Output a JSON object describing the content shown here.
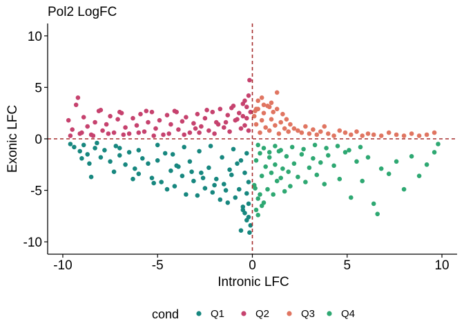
{
  "chart_data": {
    "type": "scatter",
    "title": "Pol2 LogFC",
    "xlabel": "Intronic LFC",
    "ylabel": "Exonic LFC",
    "xlim": [
      -10.8,
      10.8
    ],
    "ylim": [
      -11.2,
      11.2
    ],
    "xticks": [
      -10,
      -5,
      0,
      5,
      10
    ],
    "yticks": [
      -10,
      -5,
      0,
      5,
      10
    ],
    "reference_lines": {
      "x": 0,
      "y": 0,
      "style": "dashed",
      "color": "#A52A2A"
    },
    "legend": {
      "title": "cond",
      "position": "bottom"
    },
    "series": [
      {
        "name": "Q1",
        "color": "#17877F",
        "quadrant": "x<0, y<0",
        "x": [
          -9.6,
          -9.4,
          -9.1,
          -8.9,
          -8.7,
          -8.5,
          -8.3,
          -8.0,
          -7.8,
          -7.5,
          -7.2,
          -7.0,
          -6.7,
          -6.5,
          -6.2,
          -6.0,
          -5.8,
          -5.5,
          -5.3,
          -5.0,
          -4.8,
          -4.6,
          -4.3,
          -4.1,
          -3.9,
          -3.7,
          -3.5,
          -3.3,
          -3.1,
          -2.9,
          -2.7,
          -2.5,
          -2.3,
          -2.1,
          -1.9,
          -1.7,
          -1.5,
          -1.3,
          -1.1,
          -0.9,
          -0.7,
          -0.5,
          -0.3,
          -0.2,
          -8.2,
          -7.0,
          -6.0,
          -5.0,
          -4.2,
          -3.6,
          -2.8,
          -2.2,
          -1.6,
          -1.0,
          -0.6,
          -0.3,
          -1.2,
          -0.8,
          -0.4,
          -0.2,
          -0.5,
          -1.4,
          -2.0,
          -2.6,
          -3.2,
          -4.0,
          -4.5,
          -5.2,
          -6.3,
          -7.3,
          -8.6,
          -9.0,
          -0.1,
          -0.3,
          -0.6,
          -0.2,
          -0.4,
          -0.15
        ],
        "y": [
          -0.5,
          -0.8,
          -1.2,
          -0.6,
          -1.5,
          -3.7,
          -0.9,
          -1.8,
          -1.1,
          -2.2,
          -0.7,
          -1.6,
          -2.5,
          -1.3,
          -2.9,
          -3.4,
          -1.9,
          -2.4,
          -3.8,
          -2.1,
          -4.2,
          -1.4,
          -3.1,
          -4.6,
          -2.7,
          -3.6,
          -5.4,
          -2.2,
          -4.1,
          -5.5,
          -3.3,
          -4.8,
          -2.8,
          -5.2,
          -3.9,
          -5.9,
          -4.4,
          -6.2,
          -3.5,
          -5.7,
          -4.9,
          -6.6,
          -5.3,
          -7.6,
          -0.4,
          -0.9,
          -1.1,
          -0.6,
          -1.5,
          -0.8,
          -1.2,
          -0.7,
          -1.8,
          -1.0,
          -2.1,
          -1.4,
          -3.0,
          -2.4,
          -3.3,
          -4.2,
          -6.9,
          -5.0,
          -4.5,
          -3.8,
          -3.2,
          -2.6,
          -4.9,
          -4.3,
          -3.9,
          -3.2,
          -2.4,
          -1.9,
          -8.4,
          -7.9,
          -8.9,
          -6.3,
          -7.2,
          -9.1
        ]
      },
      {
        "name": "Q2",
        "color": "#C6426E",
        "quadrant": "x<0, y>0",
        "x": [
          -9.7,
          -9.5,
          -9.3,
          -9.1,
          -8.9,
          -8.7,
          -8.5,
          -8.3,
          -8.1,
          -7.9,
          -7.7,
          -7.5,
          -7.3,
          -7.1,
          -6.9,
          -6.7,
          -6.5,
          -6.3,
          -6.1,
          -5.9,
          -5.7,
          -5.5,
          -5.3,
          -5.1,
          -4.9,
          -4.7,
          -4.5,
          -4.3,
          -4.1,
          -3.9,
          -3.7,
          -3.5,
          -3.3,
          -3.1,
          -2.9,
          -2.7,
          -2.5,
          -2.3,
          -2.1,
          -1.9,
          -1.7,
          -1.5,
          -1.3,
          -1.1,
          -0.9,
          -0.7,
          -0.5,
          -0.3,
          -0.2,
          -9.6,
          -9.0,
          -8.4,
          -7.6,
          -6.8,
          -6.0,
          -5.2,
          -4.4,
          -3.6,
          -2.8,
          -2.0,
          -1.2,
          -0.6,
          -0.4,
          -0.2,
          -0.8,
          -1.4,
          -0.3,
          -0.1,
          -0.5,
          -9.2,
          -8.0,
          -7.0,
          -5.6,
          -4.0,
          -2.4,
          -1.0,
          -0.4,
          -0.15,
          -3.0,
          -1.8
        ],
        "y": [
          1.8,
          0.9,
          3.3,
          0.5,
          2.1,
          1.2,
          0.4,
          1.6,
          2.7,
          0.8,
          1.4,
          2.2,
          0.6,
          1.9,
          2.5,
          1.1,
          0.5,
          2.0,
          1.3,
          2.4,
          0.7,
          1.6,
          2.6,
          1.0,
          1.8,
          0.4,
          2.3,
          1.4,
          2.7,
          0.9,
          1.7,
          2.1,
          0.6,
          1.5,
          2.4,
          1.2,
          2.0,
          0.8,
          2.6,
          1.6,
          2.9,
          1.1,
          2.3,
          3.0,
          1.8,
          2.5,
          3.4,
          2.0,
          4.2,
          0.3,
          0.6,
          0.3,
          0.5,
          0.4,
          0.6,
          0.3,
          0.5,
          0.4,
          0.6,
          0.5,
          0.7,
          1.0,
          1.3,
          0.8,
          1.9,
          1.6,
          3.1,
          2.6,
          2.2,
          4.0,
          2.8,
          2.6,
          2.7,
          2.6,
          2.8,
          3.2,
          3.7,
          5.7,
          1.0,
          1.4
        ]
      },
      {
        "name": "Q3",
        "color": "#E07561",
        "quadrant": "x>0, y>0",
        "x": [
          0.1,
          0.2,
          0.3,
          0.4,
          0.5,
          0.6,
          0.7,
          0.8,
          0.9,
          1.0,
          1.1,
          1.2,
          1.3,
          1.4,
          1.5,
          1.6,
          1.7,
          1.8,
          1.9,
          2.0,
          2.2,
          2.4,
          2.6,
          2.8,
          3.0,
          3.2,
          3.4,
          3.6,
          3.8,
          4.0,
          4.3,
          4.6,
          4.9,
          5.2,
          5.5,
          5.8,
          6.1,
          6.4,
          6.8,
          7.2,
          7.6,
          8.0,
          8.4,
          8.8,
          9.2,
          9.6,
          0.6,
          1.0,
          0.3,
          0.2,
          0.5,
          0.9,
          1.3,
          0.15
        ],
        "y": [
          2.2,
          1.4,
          2.9,
          0.6,
          1.8,
          2.5,
          1.1,
          3.2,
          0.8,
          1.9,
          2.6,
          1.3,
          2.9,
          0.5,
          1.6,
          2.4,
          1.0,
          1.9,
          0.7,
          1.4,
          1.0,
          0.8,
          0.6,
          1.2,
          0.5,
          0.9,
          0.4,
          0.7,
          1.2,
          0.5,
          0.3,
          0.8,
          0.6,
          0.4,
          0.7,
          0.3,
          0.5,
          0.4,
          0.3,
          0.6,
          0.4,
          0.3,
          0.5,
          0.3,
          0.4,
          0.6,
          3.3,
          3.5,
          3.7,
          2.9,
          4.0,
          3.1,
          4.5,
          2.7
        ]
      },
      {
        "name": "Q4",
        "color": "#2EA872",
        "quadrant": "x>0, y<0",
        "x": [
          0.1,
          0.2,
          0.3,
          0.4,
          0.5,
          0.6,
          0.7,
          0.8,
          0.9,
          1.0,
          1.1,
          1.2,
          1.3,
          1.4,
          1.5,
          1.6,
          1.7,
          1.8,
          1.9,
          2.0,
          2.2,
          2.4,
          2.6,
          2.8,
          3.0,
          3.2,
          3.4,
          3.6,
          3.8,
          4.0,
          4.3,
          4.6,
          4.9,
          5.2,
          5.5,
          5.8,
          6.1,
          6.4,
          6.6,
          6.8,
          7.2,
          7.6,
          8.0,
          8.4,
          8.8,
          9.2,
          9.6,
          9.8,
          0.3,
          0.6,
          0.9,
          1.2,
          1.5,
          2.1,
          2.7,
          3.3,
          3.9,
          4.5,
          5.1,
          5.7,
          0.2,
          0.5,
          0.4,
          0.3,
          0.15
        ],
        "y": [
          -4.5,
          -2.1,
          -5.8,
          -1.4,
          -3.6,
          -6.2,
          -2.7,
          -4.9,
          -1.8,
          -3.3,
          -5.4,
          -2.5,
          -4.1,
          -1.2,
          -3.8,
          -2.9,
          -5.1,
          -1.7,
          -3.2,
          -4.6,
          -2.4,
          -3.7,
          -1.5,
          -4.2,
          -2.8,
          -1.9,
          -3.5,
          -2.3,
          -4.4,
          -1.6,
          -2.6,
          -3.9,
          -1.3,
          -5.7,
          -2.2,
          -4.1,
          -1.8,
          -6.3,
          -7.3,
          -2.9,
          -3.4,
          -2.2,
          -4.9,
          -1.7,
          -3.6,
          -2.5,
          -1.3,
          -0.5,
          -0.6,
          -0.9,
          -1.3,
          -0.7,
          -1.1,
          -0.8,
          -1.0,
          -0.6,
          -0.9,
          -0.7,
          -1.1,
          -0.8,
          -6.9,
          -6.5,
          -5.4,
          -7.4,
          -4.8
        ]
      }
    ]
  }
}
